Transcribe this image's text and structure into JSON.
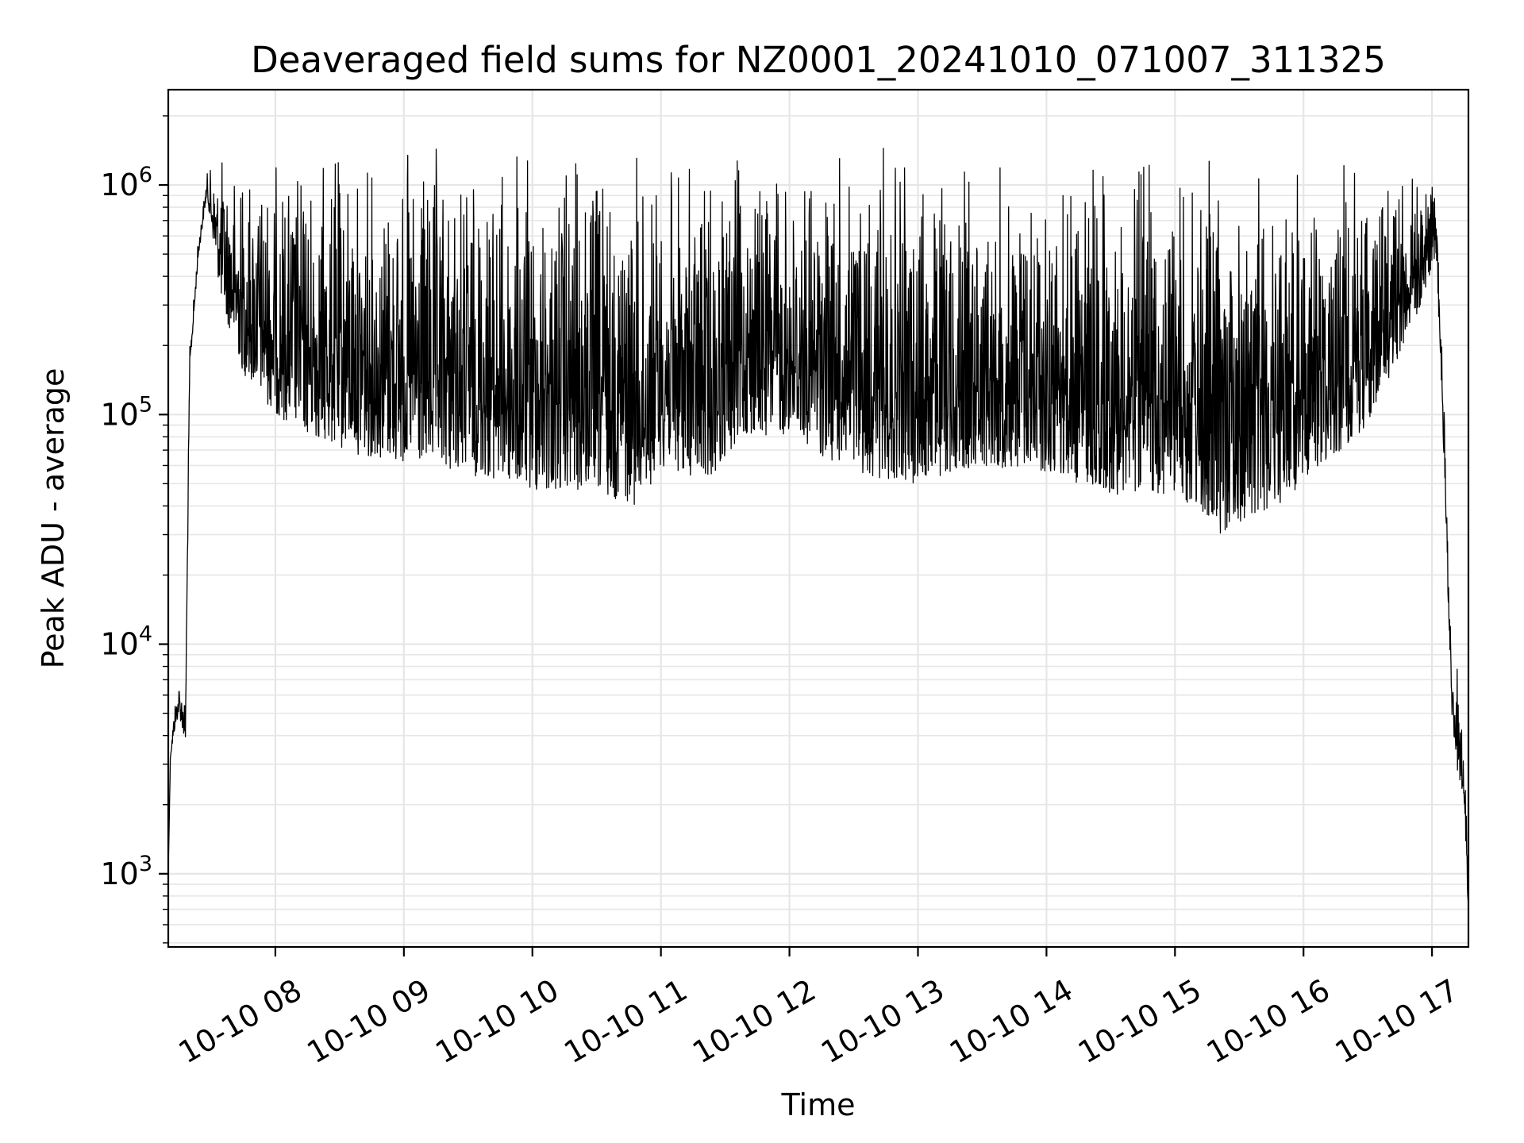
{
  "chart_data": {
    "type": "line",
    "title": "Deaveraged field sums for NZ0001_20241010_071007_311325",
    "xlabel": "Time",
    "ylabel": "Peak ADU - average",
    "y_scale": "log",
    "ylim": [
      480,
      2600000
    ],
    "xlim": [
      "2024-10-10 07:10",
      "2024-10-10 17:17"
    ],
    "grid": true,
    "line_color": "#000000",
    "grid_color": "#e6e6e6",
    "x_ticks": [
      {
        "value": "2024-10-10 08:00",
        "label": "10-10 08"
      },
      {
        "value": "2024-10-10 09:00",
        "label": "10-10 09"
      },
      {
        "value": "2024-10-10 10:00",
        "label": "10-10 10"
      },
      {
        "value": "2024-10-10 11:00",
        "label": "10-10 11"
      },
      {
        "value": "2024-10-10 12:00",
        "label": "10-10 12"
      },
      {
        "value": "2024-10-10 13:00",
        "label": "10-10 13"
      },
      {
        "value": "2024-10-10 14:00",
        "label": "10-10 14"
      },
      {
        "value": "2024-10-10 15:00",
        "label": "10-10 15"
      },
      {
        "value": "2024-10-10 16:00",
        "label": "10-10 16"
      },
      {
        "value": "2024-10-10 17:00",
        "label": "10-10 17"
      }
    ],
    "y_ticks": [
      {
        "value": 1000,
        "base": "10",
        "exp": "3"
      },
      {
        "value": 10000,
        "base": "10",
        "exp": "4"
      },
      {
        "value": 100000,
        "base": "10",
        "exp": "5"
      },
      {
        "value": 1000000,
        "base": "10",
        "exp": "6"
      }
    ],
    "series": [
      {
        "envelope_points": [
          [
            "2024-10-10 07:10",
            1000,
            1000
          ],
          [
            "2024-10-10 07:11",
            3200,
            3500
          ],
          [
            "2024-10-10 07:13",
            4200,
            6000
          ],
          [
            "2024-10-10 07:15",
            5000,
            7500
          ],
          [
            "2024-10-10 07:18",
            3600,
            6500
          ],
          [
            "2024-10-10 07:20",
            150000,
            200000
          ],
          [
            "2024-10-10 07:24",
            480000,
            600000
          ],
          [
            "2024-10-10 07:28",
            900000,
            1150000
          ],
          [
            "2024-10-10 07:35",
            300000,
            1500000
          ],
          [
            "2024-10-10 07:45",
            150000,
            1500000
          ],
          [
            "2024-10-10 08:00",
            100000,
            1500000
          ],
          [
            "2024-10-10 08:15",
            80000,
            1600000
          ],
          [
            "2024-10-10 08:30",
            70000,
            1700000
          ],
          [
            "2024-10-10 09:00",
            60000,
            1650000
          ],
          [
            "2024-10-10 09:30",
            55000,
            1600000
          ],
          [
            "2024-10-10 10:00",
            45000,
            1650000
          ],
          [
            "2024-10-10 10:30",
            45000,
            1650000
          ],
          [
            "2024-10-10 10:50",
            40000,
            1600000
          ],
          [
            "2024-10-10 11:00",
            60000,
            1500000
          ],
          [
            "2024-10-10 11:20",
            50000,
            1500000
          ],
          [
            "2024-10-10 11:40",
            80000,
            1500000
          ],
          [
            "2024-10-10 12:00",
            80000,
            1500000
          ],
          [
            "2024-10-10 12:30",
            55000,
            1600000
          ],
          [
            "2024-10-10 13:00",
            50000,
            1500000
          ],
          [
            "2024-10-10 13:30",
            60000,
            1500000
          ],
          [
            "2024-10-10 14:00",
            55000,
            1500000
          ],
          [
            "2024-10-10 14:30",
            45000,
            1600000
          ],
          [
            "2024-10-10 15:00",
            45000,
            1600000
          ],
          [
            "2024-10-10 15:20",
            30000,
            1600000
          ],
          [
            "2024-10-10 15:40",
            35000,
            1500000
          ],
          [
            "2024-10-10 16:00",
            50000,
            1400000
          ],
          [
            "2024-10-10 16:30",
            90000,
            1500000
          ],
          [
            "2024-10-10 16:55",
            300000,
            1500000
          ],
          [
            "2024-10-10 17:02",
            500000,
            1000000
          ],
          [
            "2024-10-10 17:06",
            50000,
            100000
          ],
          [
            "2024-10-10 17:09",
            5000,
            10000
          ],
          [
            "2024-10-10 17:12",
            2700,
            8000
          ],
          [
            "2024-10-10 17:15",
            2000,
            4000
          ],
          [
            "2024-10-10 17:17",
            600,
            1500
          ]
        ]
      }
    ]
  }
}
